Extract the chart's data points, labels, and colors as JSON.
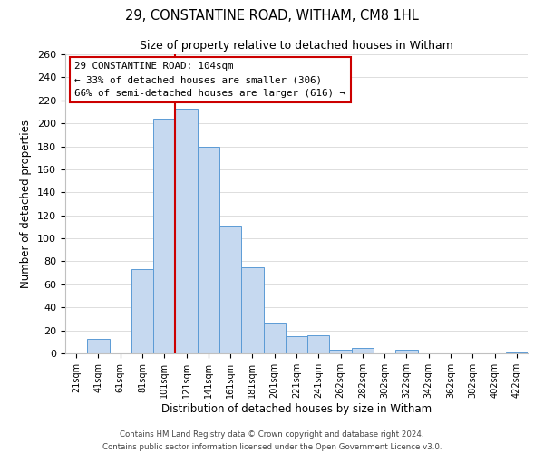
{
  "title1": "29, CONSTANTINE ROAD, WITHAM, CM8 1HL",
  "title2": "Size of property relative to detached houses in Witham",
  "xlabel": "Distribution of detached houses by size in Witham",
  "ylabel": "Number of detached properties",
  "bar_labels": [
    "21sqm",
    "41sqm",
    "61sqm",
    "81sqm",
    "101sqm",
    "121sqm",
    "141sqm",
    "161sqm",
    "181sqm",
    "201sqm",
    "221sqm",
    "241sqm",
    "262sqm",
    "282sqm",
    "302sqm",
    "322sqm",
    "342sqm",
    "362sqm",
    "382sqm",
    "402sqm",
    "422sqm"
  ],
  "bar_values": [
    0,
    13,
    0,
    73,
    204,
    213,
    180,
    110,
    75,
    26,
    15,
    16,
    3,
    5,
    0,
    3,
    0,
    0,
    0,
    0,
    1
  ],
  "bar_color": "#c6d9f0",
  "bar_edge_color": "#5b9bd5",
  "vline_x": 4.5,
  "vline_color": "#cc0000",
  "ylim": [
    0,
    260
  ],
  "yticks": [
    0,
    20,
    40,
    60,
    80,
    100,
    120,
    140,
    160,
    180,
    200,
    220,
    240,
    260
  ],
  "annotation_title": "29 CONSTANTINE ROAD: 104sqm",
  "annotation_line1": "← 33% of detached houses are smaller (306)",
  "annotation_line2": "66% of semi-detached houses are larger (616) →",
  "footer1": "Contains HM Land Registry data © Crown copyright and database right 2024.",
  "footer2": "Contains public sector information licensed under the Open Government Licence v3.0."
}
